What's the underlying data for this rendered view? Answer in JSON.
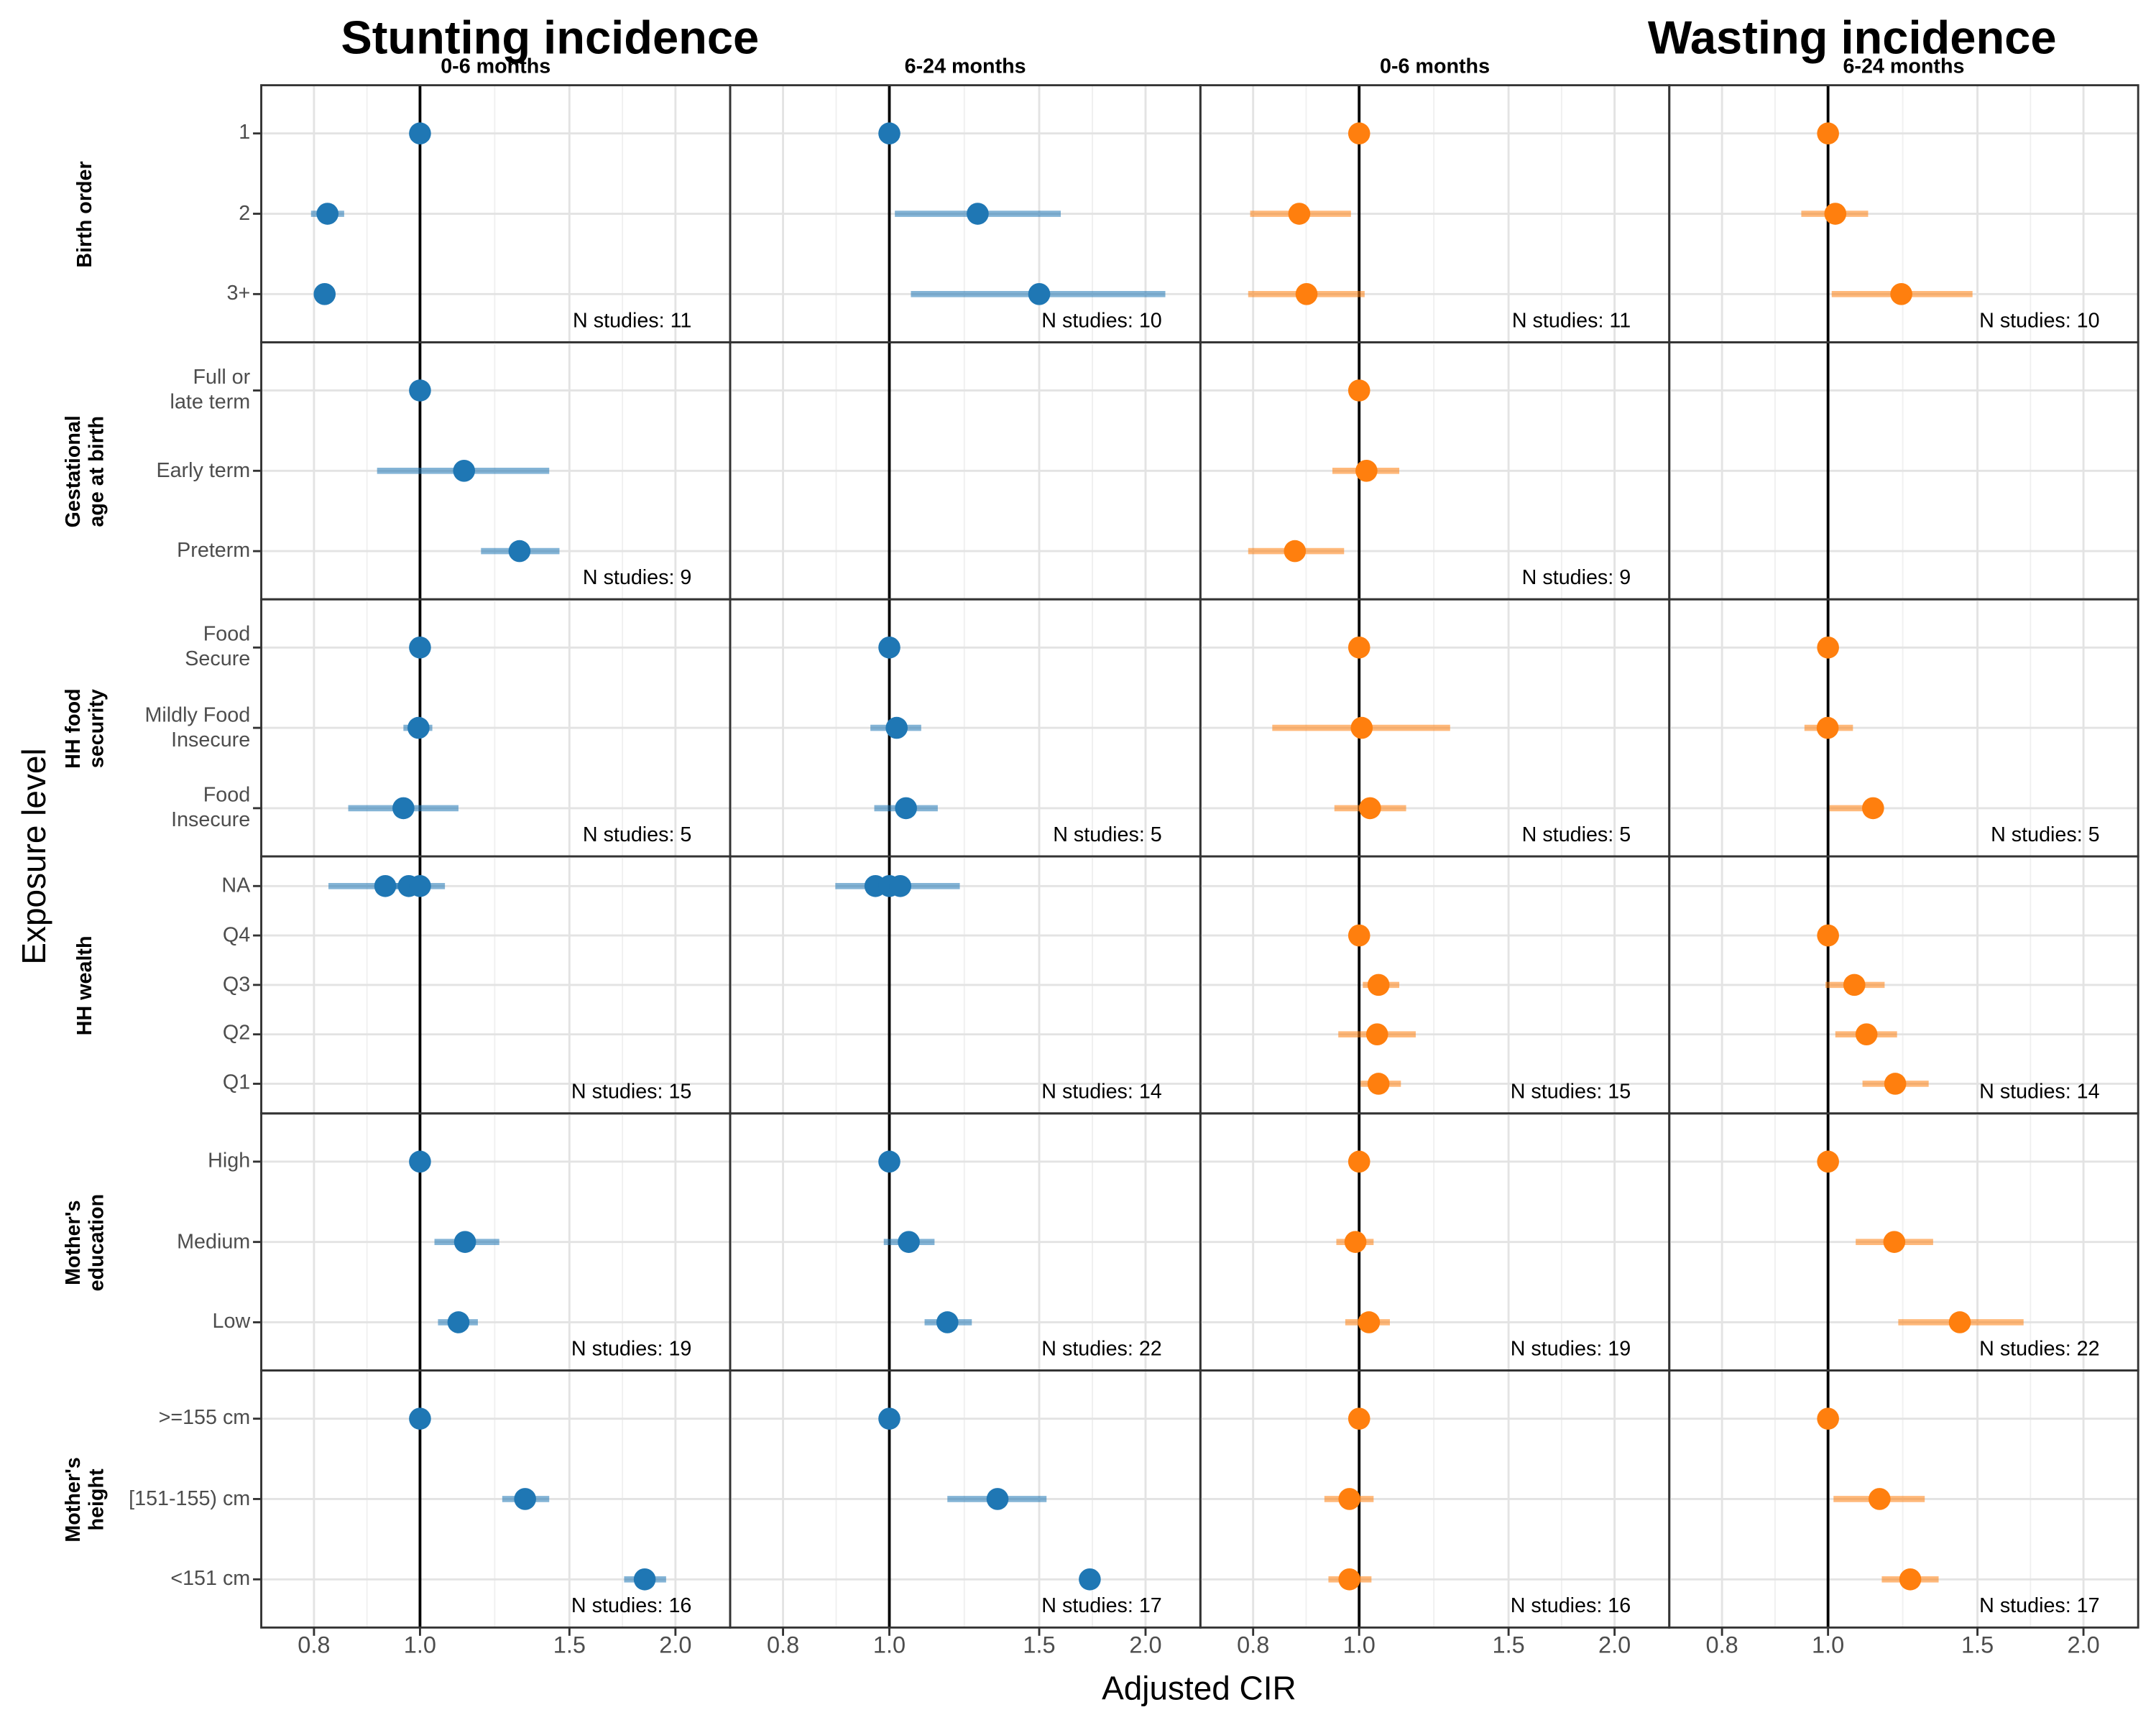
{
  "chart_data": {
    "type": "forest",
    "titles": [
      "Stunting incidence",
      "Wasting incidence"
    ],
    "x_label": "Adjusted CIR",
    "y_label": "Exposure level",
    "x_scale": "log",
    "xlim": [
      0.65,
      2.32
    ],
    "xticks": [
      {
        "value": 0.75,
        "label": "0.8"
      },
      {
        "value": 1,
        "label": "1.0"
      },
      1.5,
      {
        "value": 2,
        "label": "2.0"
      }
    ],
    "reference_line": 1,
    "grid": true,
    "columns": [
      {
        "label": "0-6 months",
        "color": "#1f77b4"
      },
      {
        "label": "6-24 months",
        "color": "#1f77b4"
      },
      {
        "label": "0-6 months",
        "color": "#ff7f0e"
      },
      {
        "label": "6-24 months",
        "color": "#ff7f0e"
      }
    ],
    "rows": [
      {
        "name": "Birth order",
        "levels": [
          "1",
          "2",
          "3+"
        ],
        "panels": [
          {
            "n_label": "N studies: 11",
            "points": [
              [
                {
                  "est": 1
                }
              ],
              [
                {
                  "est": 0.778,
                  "lo": 0.744,
                  "hi": 0.814
                }
              ],
              [
                {
                  "est": 0.772,
                  "lo": 0.76,
                  "hi": 0.785
                }
              ]
            ]
          },
          {
            "n_label": "N studies: 10",
            "points": [
              [
                {
                  "est": 1
                }
              ],
              [
                {
                  "est": 1.27,
                  "lo": 1.015,
                  "hi": 1.59
                }
              ],
              [
                {
                  "est": 1.5,
                  "lo": 1.06,
                  "hi": 2.11
                }
              ]
            ]
          },
          {
            "n_label": "N studies: 11",
            "points": [
              [
                {
                  "est": 1
                }
              ],
              [
                {
                  "est": 0.85,
                  "lo": 0.744,
                  "hi": 0.978
                }
              ],
              [
                {
                  "est": 0.867,
                  "lo": 0.74,
                  "hi": 1.015
                }
              ]
            ]
          },
          {
            "n_label": "N studies: 10",
            "points": [
              [
                {
                  "est": 1
                }
              ],
              [
                {
                  "est": 1.02,
                  "lo": 0.93,
                  "hi": 1.115
                }
              ],
              [
                {
                  "est": 1.22,
                  "lo": 1.01,
                  "hi": 1.48
                }
              ]
            ]
          }
        ]
      },
      {
        "name": "Gestational\nage at birth",
        "levels": [
          "Full or\nlate term",
          "Early term",
          "Preterm"
        ],
        "panels": [
          {
            "n_label": "N studies: 9",
            "points": [
              [
                {
                  "est": 1
                }
              ],
              [
                {
                  "est": 1.127,
                  "lo": 0.89,
                  "hi": 1.42
                }
              ],
              [
                {
                  "est": 1.31,
                  "lo": 1.18,
                  "hi": 1.46
                }
              ]
            ]
          },
          null,
          {
            "n_label": "N studies: 9",
            "points": [
              [
                {
                  "est": 1
                }
              ],
              [
                {
                  "est": 1.02,
                  "lo": 0.93,
                  "hi": 1.115
                }
              ],
              [
                {
                  "est": 0.84,
                  "lo": 0.74,
                  "hi": 0.96
                }
              ]
            ]
          },
          null
        ]
      },
      {
        "name": "HH food\nsecurity",
        "levels": [
          "Food\nSecure",
          "Mildly Food\nInsecure",
          "Food\nInsecure"
        ],
        "panels": [
          {
            "n_label": "N studies: 5",
            "points": [
              [
                {
                  "est": 1
                }
              ],
              [
                {
                  "est": 0.996,
                  "lo": 0.956,
                  "hi": 1.034
                }
              ],
              [
                {
                  "est": 0.956,
                  "lo": 0.823,
                  "hi": 1.11
                }
              ]
            ]
          },
          {
            "n_label": "N studies: 5",
            "points": [
              [
                {
                  "est": 1
                }
              ],
              [
                {
                  "est": 1.02,
                  "lo": 0.95,
                  "hi": 1.09
                }
              ],
              [
                {
                  "est": 1.046,
                  "lo": 0.96,
                  "hi": 1.14
                }
              ]
            ]
          },
          {
            "n_label": "N studies: 5",
            "points": [
              [
                {
                  "est": 1
                }
              ],
              [
                {
                  "est": 1.007,
                  "lo": 0.79,
                  "hi": 1.28
                }
              ],
              [
                {
                  "est": 1.03,
                  "lo": 0.935,
                  "hi": 1.136
                }
              ]
            ]
          },
          {
            "n_label": "N studies: 5",
            "points": [
              [
                {
                  "est": 1
                }
              ],
              [
                {
                  "est": 0.999,
                  "lo": 0.938,
                  "hi": 1.07
                }
              ],
              [
                {
                  "est": 1.13,
                  "lo": 1.004,
                  "hi": 1.153
                }
              ]
            ]
          }
        ]
      },
      {
        "name": "HH wealth",
        "levels": [
          "NA",
          "Q4",
          "Q3",
          "Q2",
          "Q1"
        ],
        "panels": [
          {
            "n_label": "N studies: 15",
            "points": [
              [
                {
                  "est": 0.91,
                  "lo": 0.78,
                  "hi": 1.07
                },
                {
                  "est": 0.97,
                  "lo": 0.93,
                  "hi": 1.01
                },
                {
                  "est": 1
                }
              ],
              [],
              [],
              [],
              []
            ]
          },
          {
            "n_label": "N studies: 14",
            "points": [
              [
                {
                  "est": 0.963,
                  "lo": 0.864,
                  "hi": 1.06
                },
                {
                  "est": 1
                },
                {
                  "est": 1.03,
                  "lo": 0.97,
                  "hi": 1.21
                }
              ],
              [],
              [],
              [],
              []
            ]
          },
          {
            "n_label": "N studies: 15",
            "points": [
              [],
              [
                {
                  "est": 1
                }
              ],
              [
                {
                  "est": 1.054,
                  "lo": 1.01,
                  "hi": 1.115
                }
              ],
              [
                {
                  "est": 1.05,
                  "lo": 0.945,
                  "hi": 1.166
                }
              ],
              [
                {
                  "est": 1.054,
                  "lo": 1.004,
                  "hi": 1.12
                }
              ]
            ]
          },
          {
            "n_label": "N studies: 14",
            "points": [
              [],
              [
                {
                  "est": 1
                }
              ],
              [
                {
                  "est": 1.074,
                  "lo": 0.993,
                  "hi": 1.166
                }
              ],
              [
                {
                  "est": 1.11,
                  "lo": 1.02,
                  "hi": 1.206
                }
              ],
              [
                {
                  "est": 1.2,
                  "lo": 1.098,
                  "hi": 1.314
                }
              ]
            ]
          }
        ]
      },
      {
        "name": "Mother's\neducation",
        "levels": [
          "High",
          "Medium",
          "Low"
        ],
        "panels": [
          {
            "n_label": "N studies: 19",
            "points": [
              [
                {
                  "est": 1
                }
              ],
              [
                {
                  "est": 1.13,
                  "lo": 1.04,
                  "hi": 1.24
                }
              ],
              [
                {
                  "est": 1.11,
                  "lo": 1.05,
                  "hi": 1.17
                }
              ]
            ]
          },
          {
            "n_label": "N studies: 22",
            "points": [
              [
                {
                  "est": 1
                }
              ],
              [
                {
                  "est": 1.054,
                  "lo": 0.985,
                  "hi": 1.13
                }
              ],
              [
                {
                  "est": 1.17,
                  "lo": 1.1,
                  "hi": 1.25
                }
              ]
            ]
          },
          {
            "n_label": "N studies: 19",
            "points": [
              [
                {
                  "est": 1
                }
              ],
              [
                {
                  "est": 0.99,
                  "lo": 0.94,
                  "hi": 1.04
                }
              ],
              [
                {
                  "est": 1.027,
                  "lo": 0.963,
                  "hi": 1.087
                }
              ]
            ]
          },
          {
            "n_label": "N studies: 22",
            "points": [
              [
                {
                  "est": 1
                }
              ],
              [
                {
                  "est": 1.197,
                  "lo": 1.078,
                  "hi": 1.33
                }
              ],
              [
                {
                  "est": 1.43,
                  "lo": 1.21,
                  "hi": 1.7
                }
              ]
            ]
          }
        ]
      },
      {
        "name": "Mother's\nheight",
        "levels": [
          ">=155 cm",
          "[151-155) cm",
          "<151 cm"
        ],
        "panels": [
          {
            "n_label": "N studies: 16",
            "points": [
              [
                {
                  "est": 1
                }
              ],
              [
                {
                  "est": 1.33,
                  "lo": 1.25,
                  "hi": 1.42
                }
              ],
              [
                {
                  "est": 1.84,
                  "lo": 1.74,
                  "hi": 1.95
                }
              ]
            ]
          },
          {
            "n_label": "N studies: 17",
            "points": [
              [
                {
                  "est": 1
                }
              ],
              [
                {
                  "est": 1.34,
                  "lo": 1.17,
                  "hi": 1.53
                }
              ],
              [
                {
                  "est": 1.72
                }
              ]
            ]
          },
          {
            "n_label": "N studies: 16",
            "points": [
              [
                {
                  "est": 1
                }
              ],
              [
                {
                  "est": 0.974,
                  "lo": 0.91,
                  "hi": 1.04
                }
              ],
              [
                {
                  "est": 0.974,
                  "lo": 0.92,
                  "hi": 1.034
                }
              ]
            ]
          },
          {
            "n_label": "N studies: 17",
            "points": [
              [
                {
                  "est": 1
                }
              ],
              [
                {
                  "est": 1.15,
                  "lo": 1.015,
                  "hi": 1.3
                }
              ],
              [
                {
                  "est": 1.25,
                  "lo": 1.157,
                  "hi": 1.35
                }
              ]
            ]
          }
        ]
      }
    ]
  }
}
